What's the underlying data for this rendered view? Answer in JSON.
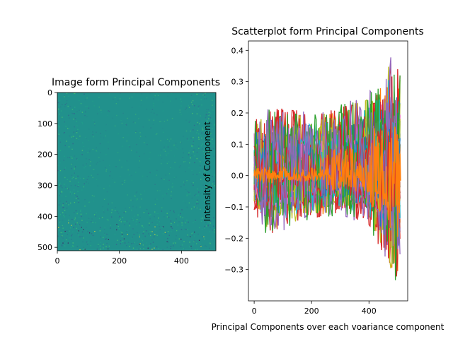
{
  "chart_data": [
    {
      "type": "heatmap",
      "title": "Image form Principal Components",
      "xlabel": "",
      "ylabel": "",
      "xlim": [
        0,
        511
      ],
      "ylim": [
        511,
        0
      ],
      "xticks": [
        "0",
        "200",
        "400"
      ],
      "yticks": [
        "0",
        "100",
        "200",
        "300",
        "400",
        "500"
      ],
      "grid": false,
      "colormap": "viridis",
      "dominant_color": "#21918c",
      "image_size": [
        512,
        512
      ]
    },
    {
      "type": "line",
      "title": "Scatterplot form Principal Components",
      "xlabel": "Principal Components over each voariance component",
      "ylabel": "Intensity of Component",
      "xlim": [
        -20,
        535
      ],
      "ylim": [
        -0.4,
        0.43
      ],
      "xticks": [
        "0",
        "200",
        "400"
      ],
      "yticks": [
        "0.4",
        "0.3",
        "0.2",
        "0.1",
        "0.0",
        "−0.1",
        "−0.2",
        "−0.3"
      ],
      "grid": false,
      "legend": false,
      "x_range": [
        0,
        511
      ],
      "envelope": {
        "x": [
          0,
          50,
          100,
          200,
          300,
          400,
          450,
          470,
          500,
          511
        ],
        "upper": [
          0.2,
          0.23,
          0.24,
          0.21,
          0.24,
          0.28,
          0.34,
          0.4,
          0.37,
          0.35
        ],
        "lower": [
          -0.13,
          -0.21,
          -0.18,
          -0.15,
          -0.13,
          -0.17,
          -0.27,
          -0.33,
          -0.36,
          -0.28
        ]
      },
      "palette": [
        "#1f77b4",
        "#ff7f0e",
        "#2ca02c",
        "#d62728",
        "#9467bd",
        "#8c564b",
        "#e377c2",
        "#7f7f7f",
        "#bcbd22",
        "#17becf"
      ]
    }
  ]
}
